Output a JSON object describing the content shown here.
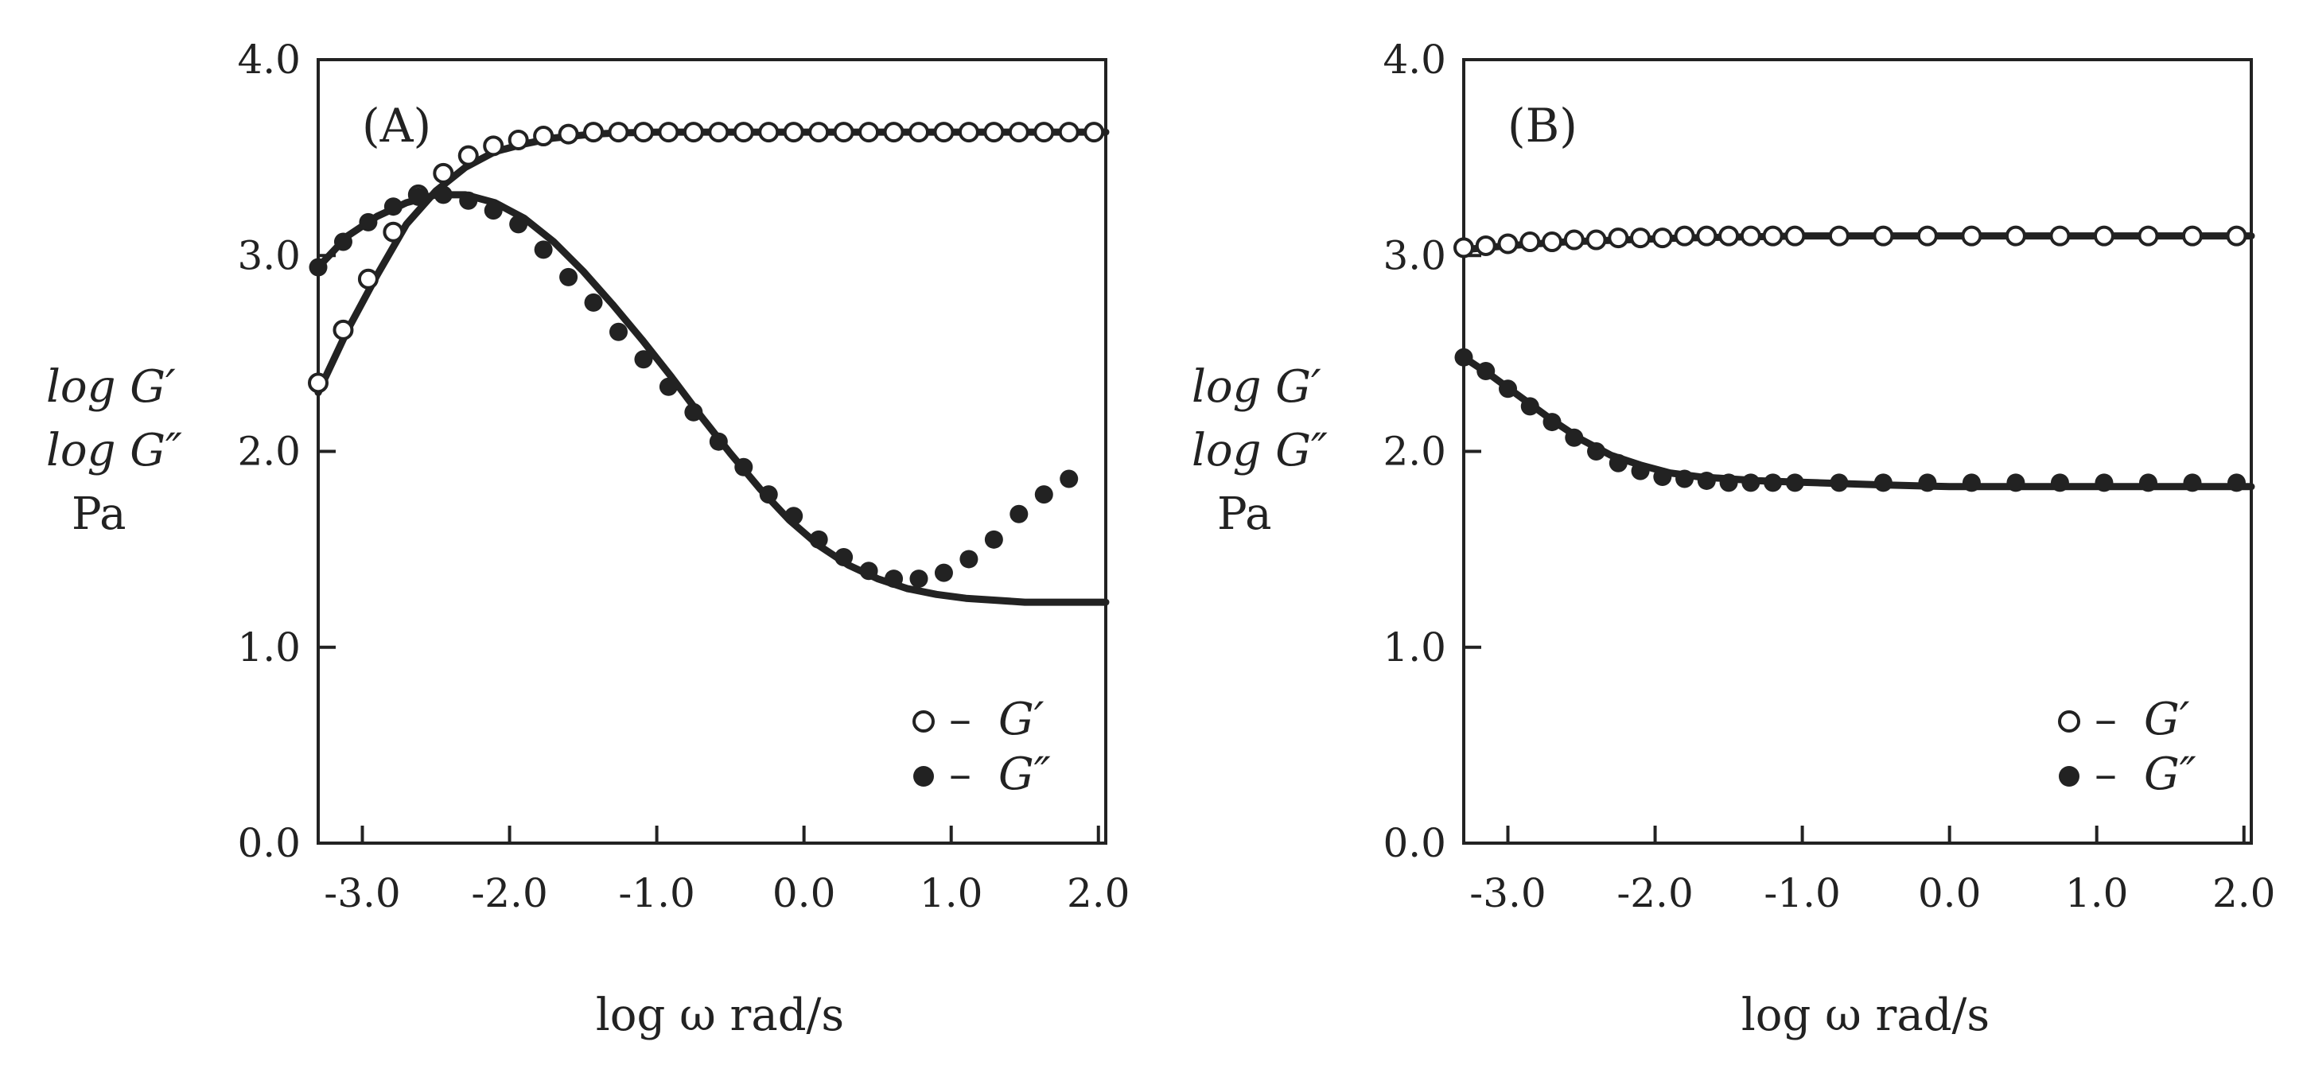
{
  "chart_data": [
    {
      "type": "scatter",
      "panel_label": "(A)",
      "xlabel": "log ω  rad/s",
      "ylabel_lines": [
        "log G′",
        "log G″",
        "Pa"
      ],
      "xlim": [
        -3.3,
        2.05
      ],
      "ylim": [
        0.0,
        4.0
      ],
      "xticks": [
        -3.0,
        -2.0,
        -1.0,
        0.0,
        1.0,
        2.0
      ],
      "xtick_labels": [
        "-3.0",
        "-2.0",
        "-1.0",
        "0.0",
        "1.0",
        "2.0"
      ],
      "yticks": [
        0.0,
        1.0,
        2.0,
        3.0,
        4.0
      ],
      "ytick_labels": [
        "0.0",
        "1.0",
        "2.0",
        "3.0",
        "4.0"
      ],
      "legend": {
        "placement": "bottom-right",
        "entries": [
          {
            "marker": "open-circle",
            "dash": "–",
            "label": "G′"
          },
          {
            "marker": "filled-circle",
            "dash": "–",
            "label": "G″"
          }
        ]
      },
      "series": [
        {
          "name": "G′ data",
          "marker": "open-circle",
          "x": [
            -3.3,
            -3.13,
            -2.96,
            -2.79,
            -2.62,
            -2.45,
            -2.28,
            -2.11,
            -1.94,
            -1.77,
            -1.6,
            -1.43,
            -1.26,
            -1.09,
            -0.92,
            -0.75,
            -0.58,
            -0.41,
            -0.24,
            -0.07,
            0.1,
            0.27,
            0.44,
            0.61,
            0.78,
            0.95,
            1.12,
            1.29,
            1.46,
            1.63,
            1.8,
            1.97
          ],
          "y": [
            2.35,
            2.62,
            2.88,
            3.12,
            3.31,
            3.42,
            3.51,
            3.56,
            3.59,
            3.61,
            3.62,
            3.63,
            3.63,
            3.63,
            3.63,
            3.63,
            3.63,
            3.63,
            3.63,
            3.63,
            3.63,
            3.63,
            3.63,
            3.63,
            3.63,
            3.63,
            3.63,
            3.63,
            3.63,
            3.63,
            3.63,
            3.63
          ]
        },
        {
          "name": "G″ data",
          "marker": "filled-circle",
          "x": [
            -3.3,
            -3.13,
            -2.96,
            -2.79,
            -2.62,
            -2.45,
            -2.28,
            -2.11,
            -1.94,
            -1.77,
            -1.6,
            -1.43,
            -1.26,
            -1.09,
            -0.92,
            -0.75,
            -0.58,
            -0.41,
            -0.24,
            -0.07,
            0.1,
            0.27,
            0.44,
            0.61,
            0.78,
            0.95,
            1.12,
            1.29,
            1.46,
            1.63,
            1.8
          ],
          "y": [
            2.94,
            3.07,
            3.17,
            3.25,
            3.3,
            3.31,
            3.28,
            3.23,
            3.16,
            3.03,
            2.89,
            2.76,
            2.61,
            2.47,
            2.33,
            2.2,
            2.05,
            1.92,
            1.78,
            1.67,
            1.55,
            1.46,
            1.39,
            1.35,
            1.35,
            1.38,
            1.45,
            1.55,
            1.68,
            1.78,
            1.86
          ]
        },
        {
          "name": "G′ fit",
          "marker": "line",
          "x": [
            -3.3,
            -3.1,
            -2.9,
            -2.7,
            -2.5,
            -2.3,
            -2.1,
            -1.9,
            -1.7,
            -1.5,
            -1.3,
            -1.0,
            -0.5,
            0.0,
            0.5,
            1.0,
            1.5,
            2.05
          ],
          "y": [
            2.3,
            2.62,
            2.9,
            3.16,
            3.33,
            3.45,
            3.53,
            3.57,
            3.6,
            3.615,
            3.625,
            3.63,
            3.63,
            3.63,
            3.63,
            3.63,
            3.63,
            3.63
          ]
        },
        {
          "name": "G″ fit",
          "marker": "line",
          "x": [
            -3.3,
            -3.1,
            -2.9,
            -2.7,
            -2.5,
            -2.3,
            -2.1,
            -1.9,
            -1.7,
            -1.5,
            -1.3,
            -1.1,
            -0.9,
            -0.7,
            -0.5,
            -0.3,
            -0.1,
            0.1,
            0.3,
            0.5,
            0.7,
            0.9,
            1.1,
            1.3,
            1.5,
            1.7,
            2.05
          ],
          "y": [
            2.94,
            3.1,
            3.2,
            3.27,
            3.31,
            3.31,
            3.27,
            3.19,
            3.07,
            2.92,
            2.75,
            2.57,
            2.38,
            2.18,
            1.99,
            1.81,
            1.65,
            1.52,
            1.42,
            1.35,
            1.3,
            1.27,
            1.25,
            1.24,
            1.23,
            1.23,
            1.23
          ]
        }
      ]
    },
    {
      "type": "scatter",
      "panel_label": "(B)",
      "xlabel": "log ω  rad/s",
      "ylabel_lines": [
        "log G′",
        "log G″",
        "Pa"
      ],
      "xlim": [
        -3.3,
        2.05
      ],
      "ylim": [
        0.0,
        4.0
      ],
      "xticks": [
        -3.0,
        -2.0,
        -1.0,
        0.0,
        1.0,
        2.0
      ],
      "xtick_labels": [
        "-3.0",
        "-2.0",
        "-1.0",
        "0.0",
        "1.0",
        "2.0"
      ],
      "yticks": [
        0.0,
        1.0,
        2.0,
        3.0,
        4.0
      ],
      "ytick_labels": [
        "0.0",
        "1.0",
        "2.0",
        "3.0",
        "4.0"
      ],
      "legend": {
        "placement": "bottom-right",
        "entries": [
          {
            "marker": "open-circle",
            "dash": "–",
            "label": "G′"
          },
          {
            "marker": "filled-circle",
            "dash": "–",
            "label": "G″"
          }
        ]
      },
      "series": [
        {
          "name": "G′ data",
          "marker": "open-circle",
          "x": [
            -3.3,
            -3.15,
            -3.0,
            -2.85,
            -2.7,
            -2.55,
            -2.4,
            -2.25,
            -2.1,
            -1.95,
            -1.8,
            -1.65,
            -1.5,
            -1.35,
            -1.2,
            -1.05,
            -0.75,
            -0.45,
            -0.15,
            0.15,
            0.45,
            0.75,
            1.05,
            1.35,
            1.65,
            1.95
          ],
          "y": [
            3.04,
            3.05,
            3.06,
            3.07,
            3.07,
            3.08,
            3.08,
            3.09,
            3.09,
            3.09,
            3.1,
            3.1,
            3.1,
            3.1,
            3.1,
            3.1,
            3.1,
            3.1,
            3.1,
            3.1,
            3.1,
            3.1,
            3.1,
            3.1,
            3.1,
            3.1
          ]
        },
        {
          "name": "G″ data",
          "marker": "filled-circle",
          "x": [
            -3.3,
            -3.15,
            -3.0,
            -2.85,
            -2.7,
            -2.55,
            -2.4,
            -2.25,
            -2.1,
            -1.95,
            -1.8,
            -1.65,
            -1.5,
            -1.35,
            -1.2,
            -1.05,
            -0.75,
            -0.45,
            -0.15,
            0.15,
            0.45,
            0.75,
            1.05,
            1.35,
            1.65,
            1.95
          ],
          "y": [
            2.48,
            2.41,
            2.32,
            2.23,
            2.15,
            2.07,
            2.0,
            1.94,
            1.9,
            1.87,
            1.86,
            1.85,
            1.84,
            1.84,
            1.84,
            1.84,
            1.84,
            1.84,
            1.84,
            1.84,
            1.84,
            1.84,
            1.84,
            1.84,
            1.84,
            1.84
          ]
        },
        {
          "name": "G′ fit",
          "marker": "line",
          "x": [
            -3.3,
            -3.0,
            -2.6,
            -2.2,
            -1.8,
            -1.4,
            -1.0,
            0.0,
            1.0,
            2.05
          ],
          "y": [
            3.03,
            3.05,
            3.07,
            3.08,
            3.09,
            3.095,
            3.1,
            3.1,
            3.1,
            3.1
          ]
        },
        {
          "name": "G″ fit",
          "marker": "line",
          "x": [
            -3.3,
            -3.1,
            -2.9,
            -2.7,
            -2.5,
            -2.3,
            -2.1,
            -1.9,
            -1.7,
            -1.5,
            -1.3,
            -1.1,
            -0.9,
            -0.5,
            0.0,
            0.5,
            1.0,
            1.5,
            2.05
          ],
          "y": [
            2.48,
            2.38,
            2.27,
            2.16,
            2.06,
            1.98,
            1.93,
            1.89,
            1.87,
            1.86,
            1.85,
            1.845,
            1.84,
            1.83,
            1.82,
            1.82,
            1.82,
            1.82,
            1.82
          ]
        }
      ]
    }
  ]
}
